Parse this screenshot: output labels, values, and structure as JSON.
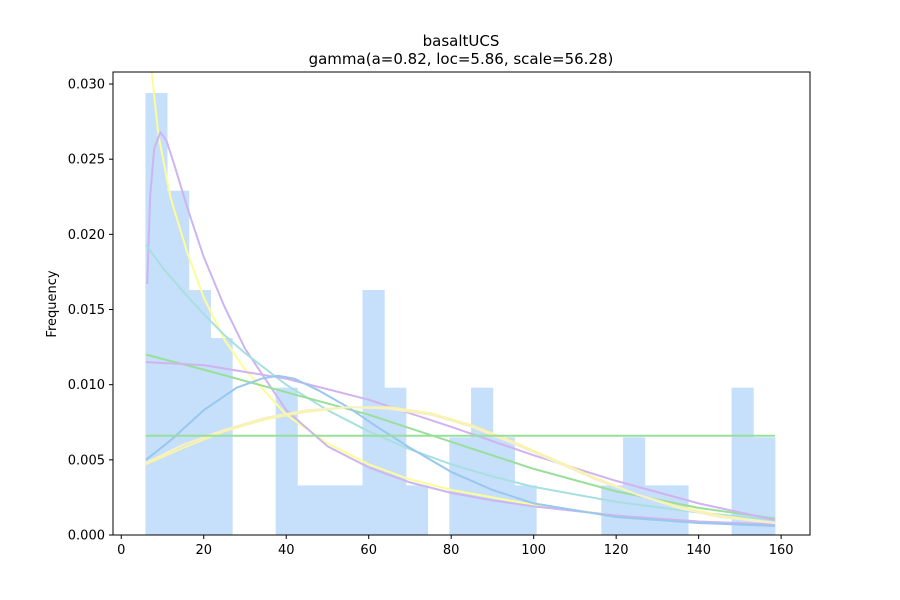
{
  "chart_data": {
    "type": "bar",
    "title": "basaltUCS",
    "subtitle": "gamma(a=0.82, loc=5.86, scale=56.28)",
    "xlabel": "",
    "ylabel": "Frequency",
    "xlim": [
      -2,
      167
    ],
    "ylim": [
      0,
      0.0308
    ],
    "x_ticks": [
      0,
      20,
      40,
      60,
      80,
      100,
      120,
      140,
      160
    ],
    "y_ticks": [
      0.0,
      0.005,
      0.01,
      0.015,
      0.02,
      0.025,
      0.03
    ],
    "y_tick_labels": [
      "0.000",
      "0.005",
      "0.010",
      "0.015",
      "0.020",
      "0.025",
      "0.030"
    ],
    "grid": false,
    "histogram": {
      "color": "#c6dffb",
      "bin_edges": [
        5.86,
        11.12,
        16.39,
        21.65,
        26.92,
        32.18,
        37.44,
        42.71,
        47.97,
        53.24,
        58.5,
        63.77,
        69.03,
        74.29,
        79.56,
        84.82,
        90.09,
        95.35,
        100.62,
        105.88,
        111.14,
        116.41,
        121.67,
        126.94,
        132.2,
        137.46,
        142.73,
        147.99,
        153.26,
        158.52
      ],
      "values": [
        0.0294,
        0.0229,
        0.0163,
        0.0131,
        0.0,
        0.0,
        0.0098,
        0.0033,
        0.0033,
        0.0033,
        0.0163,
        0.0098,
        0.0033,
        0.0,
        0.0065,
        0.0098,
        0.0065,
        0.0033,
        0.0,
        0.0,
        0.0,
        0.0033,
        0.0065,
        0.0033,
        0.0033,
        0.0,
        0.0,
        0.0098,
        0.0065
      ]
    },
    "curves": [
      {
        "color": "#fdfd96",
        "points": [
          [
            7.3,
            0.031
          ],
          [
            9,
            0.0266
          ],
          [
            12,
            0.0224
          ],
          [
            16,
            0.0188
          ],
          [
            20,
            0.0158
          ],
          [
            25,
            0.013
          ],
          [
            30,
            0.011
          ],
          [
            40,
            0.008
          ],
          [
            50,
            0.0061
          ],
          [
            60,
            0.0047
          ],
          [
            70,
            0.0037
          ],
          [
            80,
            0.003
          ],
          [
            90,
            0.0025
          ],
          [
            100,
            0.002
          ],
          [
            120,
            0.0013
          ],
          [
            140,
            0.0009
          ],
          [
            158.5,
            0.0007
          ]
        ]
      },
      {
        "color": "#cdb5f2",
        "points": [
          [
            6.3,
            0.0167
          ],
          [
            7,
            0.0225
          ],
          [
            8,
            0.0257
          ],
          [
            9.5,
            0.0268
          ],
          [
            11,
            0.0262
          ],
          [
            13,
            0.0245
          ],
          [
            16,
            0.0218
          ],
          [
            20,
            0.0185
          ],
          [
            25,
            0.0152
          ],
          [
            30,
            0.0124
          ],
          [
            40,
            0.0083
          ],
          [
            50,
            0.0059
          ],
          [
            60,
            0.0045
          ],
          [
            70,
            0.0035
          ],
          [
            80,
            0.0028
          ],
          [
            90,
            0.0023
          ],
          [
            100,
            0.0019
          ],
          [
            120,
            0.0013
          ],
          [
            140,
            0.0009
          ],
          [
            158.5,
            0.0007
          ]
        ]
      },
      {
        "color": "#a8e0e0",
        "points": [
          [
            6,
            0.0193
          ],
          [
            10,
            0.0178
          ],
          [
            15,
            0.0162
          ],
          [
            20,
            0.0147
          ],
          [
            25,
            0.0133
          ],
          [
            30,
            0.0121
          ],
          [
            40,
            0.01
          ],
          [
            50,
            0.0083
          ],
          [
            60,
            0.0069
          ],
          [
            70,
            0.0057
          ],
          [
            80,
            0.0047
          ],
          [
            90,
            0.0039
          ],
          [
            100,
            0.0032
          ],
          [
            120,
            0.0022
          ],
          [
            140,
            0.0015
          ],
          [
            158.5,
            0.001
          ]
        ]
      },
      {
        "color": "#98e09a",
        "points": [
          [
            6,
            0.012
          ],
          [
            20,
            0.011
          ],
          [
            40,
            0.0095
          ],
          [
            60,
            0.008
          ],
          [
            80,
            0.0062
          ],
          [
            100,
            0.0044
          ],
          [
            120,
            0.0029
          ],
          [
            140,
            0.0018
          ],
          [
            158.5,
            0.0011
          ]
        ]
      },
      {
        "color": "#d0b3f0",
        "points": [
          [
            6,
            0.0115
          ],
          [
            20,
            0.0113
          ],
          [
            40,
            0.0104
          ],
          [
            60,
            0.009
          ],
          [
            80,
            0.0072
          ],
          [
            100,
            0.0053
          ],
          [
            120,
            0.0036
          ],
          [
            140,
            0.0021
          ],
          [
            158.5,
            0.001
          ]
        ]
      },
      {
        "color": "#98c8ee",
        "points": [
          [
            6,
            0.005
          ],
          [
            12,
            0.0063
          ],
          [
            20,
            0.0083
          ],
          [
            28,
            0.0098
          ],
          [
            34,
            0.0104
          ],
          [
            38,
            0.0106
          ],
          [
            42,
            0.0104
          ],
          [
            48,
            0.0096
          ],
          [
            55,
            0.0085
          ],
          [
            62,
            0.0072
          ],
          [
            70,
            0.0058
          ],
          [
            80,
            0.0042
          ],
          [
            90,
            0.003
          ],
          [
            100,
            0.0021
          ],
          [
            120,
            0.0012
          ],
          [
            140,
            0.0008
          ],
          [
            158.5,
            0.0006
          ]
        ]
      },
      {
        "color": "#fbf4a0",
        "points": [
          [
            6,
            0.0047
          ],
          [
            15,
            0.0058
          ],
          [
            25,
            0.0069
          ],
          [
            35,
            0.0077
          ],
          [
            45,
            0.0082
          ],
          [
            55,
            0.0085
          ],
          [
            65,
            0.0085
          ],
          [
            75,
            0.0081
          ],
          [
            85,
            0.0073
          ],
          [
            95,
            0.0062
          ],
          [
            105,
            0.005
          ],
          [
            115,
            0.0038
          ],
          [
            125,
            0.0027
          ],
          [
            135,
            0.0019
          ],
          [
            145,
            0.0013
          ],
          [
            158.5,
            0.0008
          ]
        ]
      },
      {
        "color": "#f6f0c8",
        "points": [
          [
            6,
            0.0048
          ],
          [
            15,
            0.006
          ],
          [
            25,
            0.007
          ],
          [
            35,
            0.0078
          ],
          [
            45,
            0.0083
          ],
          [
            55,
            0.0085
          ],
          [
            65,
            0.0084
          ],
          [
            75,
            0.008
          ],
          [
            85,
            0.0072
          ],
          [
            95,
            0.0061
          ],
          [
            105,
            0.0049
          ],
          [
            115,
            0.0037
          ],
          [
            125,
            0.0027
          ],
          [
            135,
            0.0018
          ],
          [
            145,
            0.0012
          ],
          [
            158.5,
            0.0008
          ]
        ]
      },
      {
        "color": "#98e09a",
        "points": [
          [
            6,
            0.0066
          ],
          [
            158.5,
            0.0066
          ]
        ]
      }
    ]
  }
}
